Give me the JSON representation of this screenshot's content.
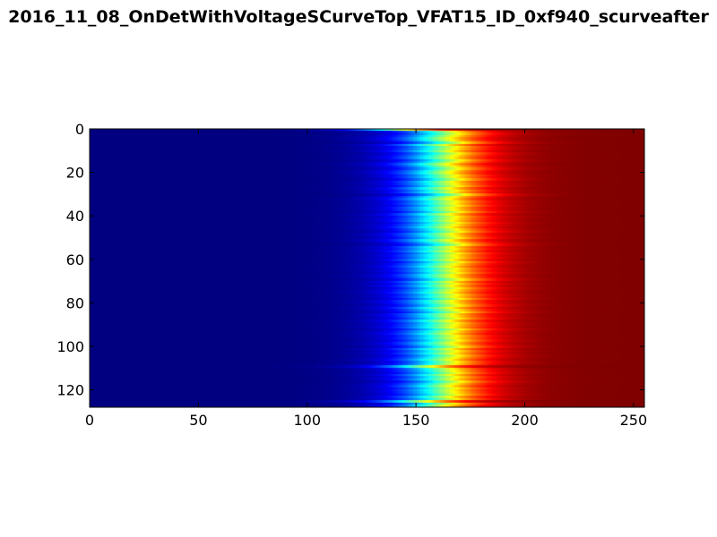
{
  "chart_data": {
    "type": "heatmap",
    "title": "2016_11_08_OnDetWithVoltageSCurveTop_VFAT15_ID_0xf940_scurveafter",
    "xlabel": "",
    "ylabel": "",
    "xlim": [
      0,
      255
    ],
    "ylim": [
      128,
      0
    ],
    "x_ticks": [
      0,
      50,
      100,
      150,
      200,
      250
    ],
    "y_ticks": [
      0,
      20,
      40,
      60,
      80,
      100,
      120
    ],
    "x_tick_labels": [
      "0",
      "50",
      "100",
      "150",
      "200",
      "250"
    ],
    "y_tick_labels": [
      "0",
      "20",
      "40",
      "60",
      "80",
      "100",
      "120"
    ],
    "colormap": "jet",
    "value_range": [
      0,
      1
    ],
    "rows": 128,
    "columns": 256,
    "grid": false,
    "row_turn_on_center": [
      140,
      162,
      164,
      162,
      160,
      161,
      166,
      158,
      163,
      162,
      160,
      164,
      162,
      161,
      165,
      163,
      159,
      162,
      164,
      161,
      160,
      163,
      162,
      165,
      161,
      162,
      164,
      160,
      163,
      161,
      167,
      162,
      160,
      163,
      162,
      164,
      161,
      162,
      165,
      160,
      163,
      162,
      161,
      164,
      162,
      160,
      163,
      165,
      161,
      162,
      164,
      160,
      163,
      166,
      161,
      162,
      160,
      164,
      162,
      163,
      161,
      165,
      162,
      160,
      163,
      162,
      164,
      161,
      162,
      165,
      160,
      163,
      161,
      164,
      162,
      160,
      163,
      162,
      165,
      161,
      162,
      164,
      160,
      163,
      166,
      161,
      162,
      164,
      160,
      163,
      162,
      161,
      165,
      162,
      160,
      163,
      162,
      164,
      161,
      162,
      165,
      160,
      163,
      161,
      164,
      162,
      160,
      163,
      162,
      152,
      161,
      162,
      164,
      160,
      163,
      161,
      165,
      162,
      160,
      163,
      161,
      162,
      164,
      160,
      163,
      150,
      162,
      158
    ],
    "row_turn_on_width": 12
  },
  "colors": {
    "jet_stops": [
      "#00007f",
      "#0000ff",
      "#00ffff",
      "#ffff00",
      "#ff0000",
      "#7f0000"
    ],
    "axis": "#000000",
    "background": "#ffffff"
  }
}
